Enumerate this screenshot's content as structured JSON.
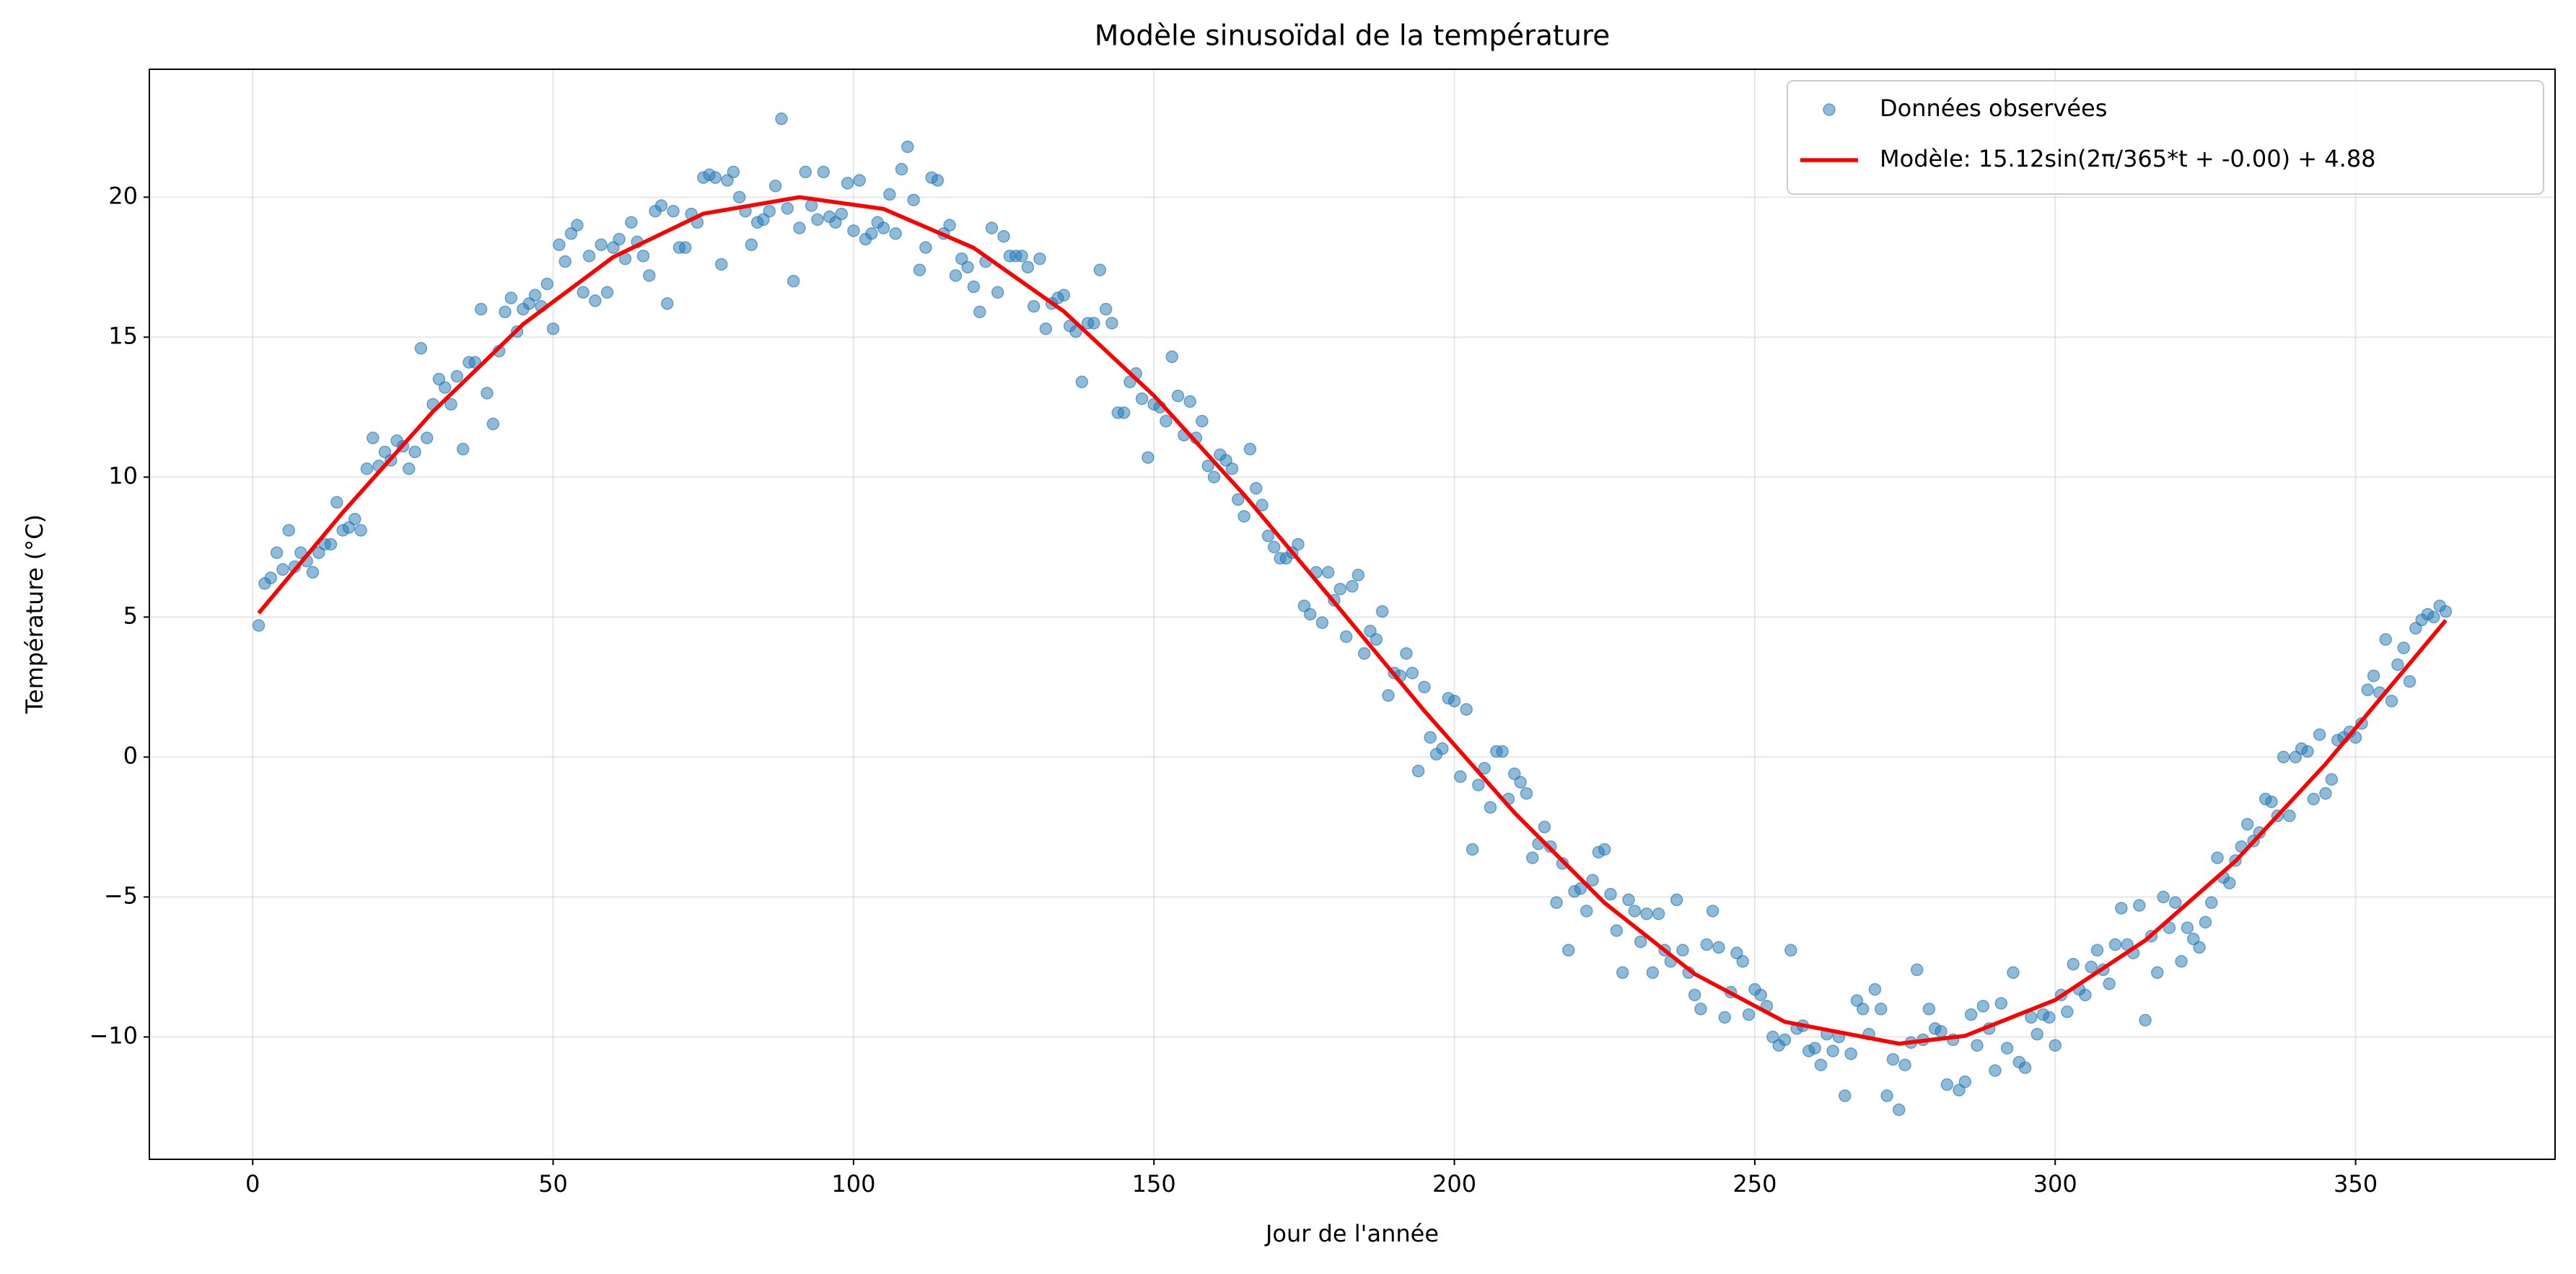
{
  "chart_data": {
    "type": "scatter",
    "title": "Modèle sinusoïdal de la température",
    "xlabel": "Jour de l'année",
    "ylabel": "Température (°C)",
    "xlim": [
      -17.2,
      383.2
    ],
    "ylim": [
      -14.37,
      24.57
    ],
    "xticks": [
      0,
      50,
      100,
      150,
      200,
      250,
      300,
      350
    ],
    "yticks": [
      {
        "value": -10,
        "label": "−10"
      },
      {
        "value": -5,
        "label": "−5"
      },
      0,
      5,
      10,
      15,
      20
    ],
    "grid": true,
    "legend": "upper right",
    "series": [
      {
        "name": "Données observées",
        "type": "scatter",
        "color": "#1f77b4",
        "x": [
          1,
          2,
          3,
          4,
          5,
          6,
          7,
          8,
          9,
          10,
          11,
          12,
          13,
          14,
          15,
          16,
          17,
          18,
          19,
          20,
          21,
          22,
          23,
          24,
          25,
          26,
          27,
          28,
          29,
          30,
          31,
          32,
          33,
          34,
          35,
          36,
          37,
          38,
          39,
          40,
          41,
          42,
          43,
          44,
          45,
          46,
          47,
          48,
          49,
          50,
          51,
          52,
          53,
          54,
          55,
          56,
          57,
          58,
          59,
          60,
          61,
          62,
          63,
          64,
          65,
          66,
          67,
          68,
          69,
          70,
          71,
          72,
          73,
          74,
          75,
          76,
          77,
          78,
          79,
          80,
          81,
          82,
          83,
          84,
          85,
          86,
          87,
          88,
          89,
          90,
          91,
          92,
          93,
          94,
          95,
          96,
          97,
          98,
          99,
          100,
          101,
          102,
          103,
          104,
          105,
          106,
          107,
          108,
          109,
          110,
          111,
          112,
          113,
          114,
          115,
          116,
          117,
          118,
          119,
          120,
          121,
          122,
          123,
          124,
          125,
          126,
          127,
          128,
          129,
          130,
          131,
          132,
          133,
          134,
          135,
          136,
          137,
          138,
          139,
          140,
          141,
          142,
          143,
          144,
          145,
          146,
          147,
          148,
          149,
          150,
          151,
          152,
          153,
          154,
          155,
          156,
          157,
          158,
          159,
          160,
          161,
          162,
          163,
          164,
          165,
          166,
          167,
          168,
          169,
          170,
          171,
          172,
          173,
          174,
          175,
          176,
          177,
          178,
          179,
          180,
          181,
          182,
          183,
          184,
          185,
          186,
          187,
          188,
          189,
          190,
          191,
          192,
          193,
          194,
          195,
          196,
          197,
          198,
          199,
          200,
          201,
          202,
          203,
          204,
          205,
          206,
          207,
          208,
          209,
          210,
          211,
          212,
          213,
          214,
          215,
          216,
          217,
          218,
          219,
          220,
          221,
          222,
          223,
          224,
          225,
          226,
          227,
          228,
          229,
          230,
          231,
          232,
          233,
          234,
          235,
          236,
          237,
          238,
          239,
          240,
          241,
          242,
          243,
          244,
          245,
          246,
          247,
          248,
          249,
          250,
          251,
          252,
          253,
          254,
          255,
          256,
          257,
          258,
          259,
          260,
          261,
          262,
          263,
          264,
          265,
          266,
          267,
          268,
          269,
          270,
          271,
          272,
          273,
          274,
          275,
          276,
          277,
          278,
          279,
          280,
          281,
          282,
          283,
          284,
          285,
          286,
          287,
          288,
          289,
          290,
          291,
          292,
          293,
          294,
          295,
          296,
          297,
          298,
          299,
          300,
          301,
          302,
          303,
          304,
          305,
          306,
          307,
          308,
          309,
          310,
          311,
          312,
          313,
          314,
          315,
          316,
          317,
          318,
          319,
          320,
          321,
          322,
          323,
          324,
          325,
          326,
          327,
          328,
          329,
          330,
          331,
          332,
          333,
          334,
          335,
          336,
          337,
          338,
          339,
          340,
          341,
          342,
          343,
          344,
          345,
          346,
          347,
          348,
          349,
          350,
          351,
          352,
          353,
          354,
          355,
          356,
          357,
          358,
          359,
          360,
          361,
          362,
          363,
          364,
          365
        ],
        "values": [
          4.7,
          6.2,
          6.4,
          7.3,
          6.7,
          8.1,
          6.8,
          7.3,
          7.0,
          6.6,
          7.3,
          7.6,
          7.6,
          9.1,
          8.1,
          8.2,
          8.5,
          8.1,
          10.3,
          11.4,
          10.4,
          10.9,
          10.6,
          11.3,
          11.1,
          10.3,
          10.9,
          14.6,
          11.4,
          12.6,
          13.5,
          13.2,
          12.6,
          13.6,
          11.0,
          14.1,
          14.1,
          16.0,
          13.0,
          11.9,
          14.5,
          15.9,
          16.4,
          15.2,
          16.0,
          16.2,
          16.5,
          16.1,
          16.9,
          15.3,
          18.3,
          17.7,
          18.7,
          19.0,
          16.6,
          17.9,
          16.3,
          18.3,
          16.6,
          18.2,
          18.5,
          17.8,
          19.1,
          18.4,
          17.9,
          17.2,
          19.5,
          19.7,
          16.2,
          19.5,
          18.2,
          18.2,
          19.4,
          19.1,
          20.7,
          20.8,
          20.7,
          17.6,
          20.6,
          20.9,
          20.0,
          19.5,
          18.3,
          19.1,
          19.2,
          19.5,
          20.4,
          22.8,
          19.6,
          17.0,
          18.9,
          20.9,
          19.7,
          19.2,
          20.9,
          19.3,
          19.1,
          19.4,
          20.5,
          18.8,
          20.6,
          18.5,
          18.7,
          19.1,
          18.9,
          20.1,
          18.7,
          21.0,
          21.8,
          19.9,
          17.4,
          18.2,
          20.7,
          20.6,
          18.7,
          19.0,
          17.2,
          17.8,
          17.5,
          16.8,
          15.9,
          17.7,
          18.9,
          16.6,
          18.6,
          17.9,
          17.9,
          17.9,
          17.5,
          16.1,
          17.8,
          15.3,
          16.2,
          16.4,
          16.5,
          15.4,
          15.2,
          13.4,
          15.5,
          15.5,
          17.4,
          16.0,
          15.5,
          12.3,
          12.3,
          13.4,
          13.7,
          12.8,
          10.7,
          12.6,
          12.5,
          12.0,
          14.3,
          12.9,
          11.5,
          12.7,
          11.4,
          12.0,
          10.4,
          10.0,
          10.8,
          10.6,
          10.3,
          9.2,
          8.6,
          11.0,
          9.6,
          9.0,
          7.9,
          7.5,
          7.1,
          7.1,
          7.3,
          7.6,
          5.4,
          5.1,
          6.6,
          4.8,
          6.6,
          5.6,
          6.0,
          4.3,
          6.1,
          6.5,
          3.7,
          4.5,
          4.2,
          5.2,
          2.2,
          3.0,
          2.9,
          3.7,
          3.0,
          -0.5,
          2.5,
          0.7,
          0.1,
          0.3,
          2.1,
          2.0,
          -0.7,
          1.7,
          -3.3,
          -1.0,
          -0.4,
          -1.8,
          0.2,
          0.2,
          -1.5,
          -0.6,
          -0.9,
          -1.3,
          -3.6,
          -3.1,
          -2.5,
          -3.2,
          -5.2,
          -3.8,
          -6.9,
          -4.8,
          -4.7,
          -5.5,
          -4.4,
          -3.4,
          -3.3,
          -4.9,
          -6.2,
          -7.7,
          -5.1,
          -5.5,
          -6.6,
          -5.6,
          -7.7,
          -5.6,
          -6.9,
          -7.3,
          -5.1,
          -6.9,
          -7.7,
          -8.5,
          -9.0,
          -6.7,
          -5.5,
          -6.8,
          -9.3,
          -8.4,
          -7.0,
          -7.3,
          -9.2,
          -8.3,
          -8.5,
          -8.9,
          -10.0,
          -10.3,
          -10.1,
          -6.9,
          -9.7,
          -9.6,
          -10.5,
          -10.4,
          -11.0,
          -9.9,
          -10.5,
          -10.0,
          -12.1,
          -10.6,
          -8.7,
          -9.0,
          -9.9,
          -8.3,
          -9.0,
          -12.1,
          -10.8,
          -12.6,
          -11.0,
          -10.2,
          -7.6,
          -10.1,
          -9.0,
          -9.7,
          -9.8,
          -11.7,
          -10.1,
          -11.9,
          -11.6,
          -9.2,
          -10.3,
          -8.9,
          -9.7,
          -11.2,
          -8.8,
          -10.4,
          -7.7,
          -10.9,
          -11.1,
          -9.3,
          -9.9,
          -9.2,
          -9.3,
          -10.3,
          -8.5,
          -9.1,
          -7.4,
          -8.3,
          -8.5,
          -7.5,
          -6.9,
          -7.6,
          -8.1,
          -6.7,
          -5.4,
          -6.7,
          -7.0,
          -5.3,
          -9.4,
          -6.4,
          -7.7,
          -5.0,
          -6.1,
          -5.2,
          -7.3,
          -6.1,
          -6.5,
          -6.8,
          -5.9,
          -5.2,
          -3.6,
          -4.3,
          -4.5,
          -3.7,
          -3.2,
          -2.4,
          -3.0,
          -2.7,
          -1.5,
          -1.6,
          -2.1,
          0.0,
          -2.1,
          0.0,
          0.3,
          0.2,
          -1.5,
          0.8,
          -1.3,
          -0.8,
          0.6,
          0.7,
          0.9,
          0.7,
          1.2,
          2.4,
          2.9,
          2.3,
          4.2,
          2.0,
          3.3,
          3.9,
          2.7,
          4.6,
          4.9,
          5.1,
          5.0,
          5.4,
          5.2
        ]
      },
      {
        "name": "Modèle: 15.12sin(2π/365*t + -0.00) + 4.88",
        "type": "line",
        "color": "#ff0000",
        "x": [
          1,
          15,
          30,
          45,
          60,
          75,
          91,
          105,
          120,
          135,
          150,
          165,
          180,
          195,
          210,
          225,
          240,
          255,
          274,
          285,
          300,
          315,
          330,
          345,
          365
        ],
        "values": [
          5.14,
          8.74,
          12.34,
          15.46,
          17.86,
          19.41,
          20.0,
          19.58,
          18.19,
          15.92,
          12.91,
          9.37,
          5.53,
          1.65,
          -1.99,
          -5.21,
          -7.75,
          -9.46,
          -10.24,
          -9.96,
          -8.68,
          -6.55,
          -3.72,
          -0.25,
          4.88
        ]
      }
    ]
  }
}
